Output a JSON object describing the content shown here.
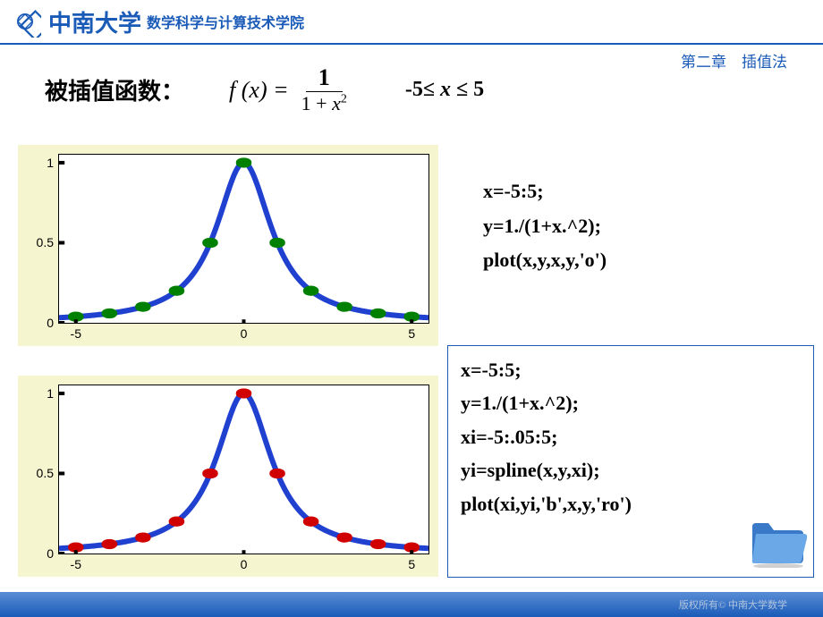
{
  "header": {
    "university": "中南大学",
    "department": "数学科学与计算技术学院",
    "logo_color": "#1a5bb8"
  },
  "chapter": "第二章　插值法",
  "title": "被插值函数：",
  "formula": {
    "lhs": "f (x) =",
    "numerator": "1",
    "denom_prefix": "1 + ",
    "denom_var": "x",
    "denom_exp": "2"
  },
  "domain": {
    "lo": "-5",
    "hi": "5",
    "rel": "≤",
    "var": "x"
  },
  "chart_common": {
    "background_color": "#f5f5d0",
    "plot_bg": "#ffffff",
    "axis_color": "#000000",
    "line_color": "#2040d0",
    "line_width": 1.2,
    "marker_size": 5,
    "xlim": [
      -5.5,
      5.5
    ],
    "ylim": [
      0,
      1.05
    ],
    "xticks": [
      -5,
      0,
      5
    ],
    "yticks": [
      0,
      0.5,
      1
    ],
    "x_values": [
      -5,
      -4,
      -3,
      -2,
      -1,
      0,
      1,
      2,
      3,
      4,
      5
    ],
    "y_values": [
      0.0385,
      0.0588,
      0.1,
      0.2,
      0.5,
      1.0,
      0.5,
      0.2,
      0.1,
      0.0588,
      0.0385
    ]
  },
  "chart1": {
    "marker_edge_color": "#008000",
    "marker_fill": "none"
  },
  "chart2": {
    "marker_edge_color": "#d00000",
    "marker_fill": "none"
  },
  "code1": {
    "lines": [
      "x=-5:5;",
      "y=1./(1+x.^2);",
      "plot(x,y,x,y,'o')"
    ]
  },
  "code2": {
    "box_border": "#1a5bb8",
    "lines": [
      "x=-5:5;",
      "y=1./(1+x.^2);",
      "xi=-5:.05:5;",
      "yi=spline(x,y,xi);",
      "plot(xi,yi,'b',x,y,'ro')"
    ]
  },
  "footer": {
    "copyright": "版权所有© 中南大学数学"
  },
  "folder_icon_colors": {
    "body": "#4a90e2",
    "flap": "#b0d4f5"
  }
}
